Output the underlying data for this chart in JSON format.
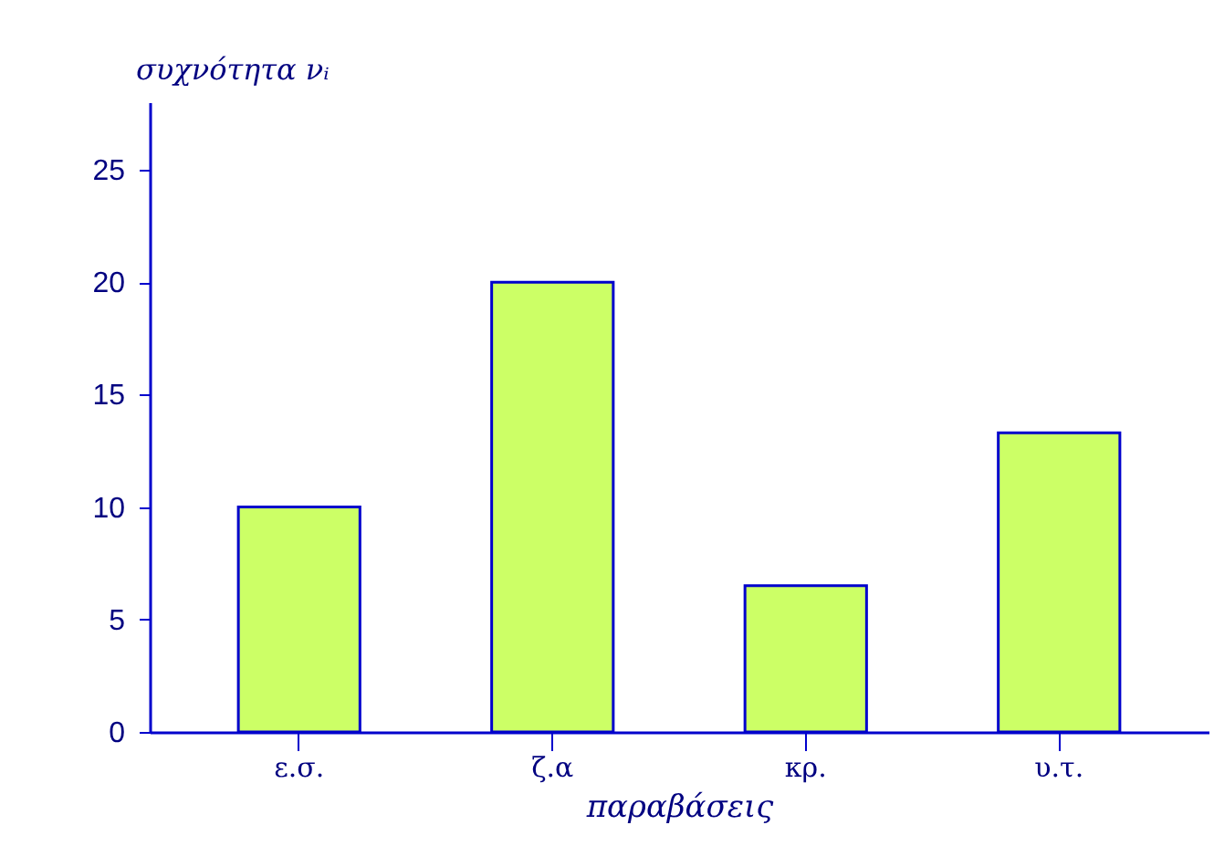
{
  "chart_data": {
    "type": "bar",
    "xlabel": "παραβάσεις",
    "ylabel": "συχνότητα νᵢ",
    "categories": [
      "ε.σ.",
      "ζ.α",
      "κρ.",
      "υ.τ."
    ],
    "values": [
      10,
      20,
      6.5,
      13.3
    ],
    "color": "#ccff66",
    "ylim": [
      0,
      28
    ],
    "yticks": [
      0,
      5,
      10,
      15,
      20,
      25
    ],
    "grid": false,
    "legend": false
  }
}
